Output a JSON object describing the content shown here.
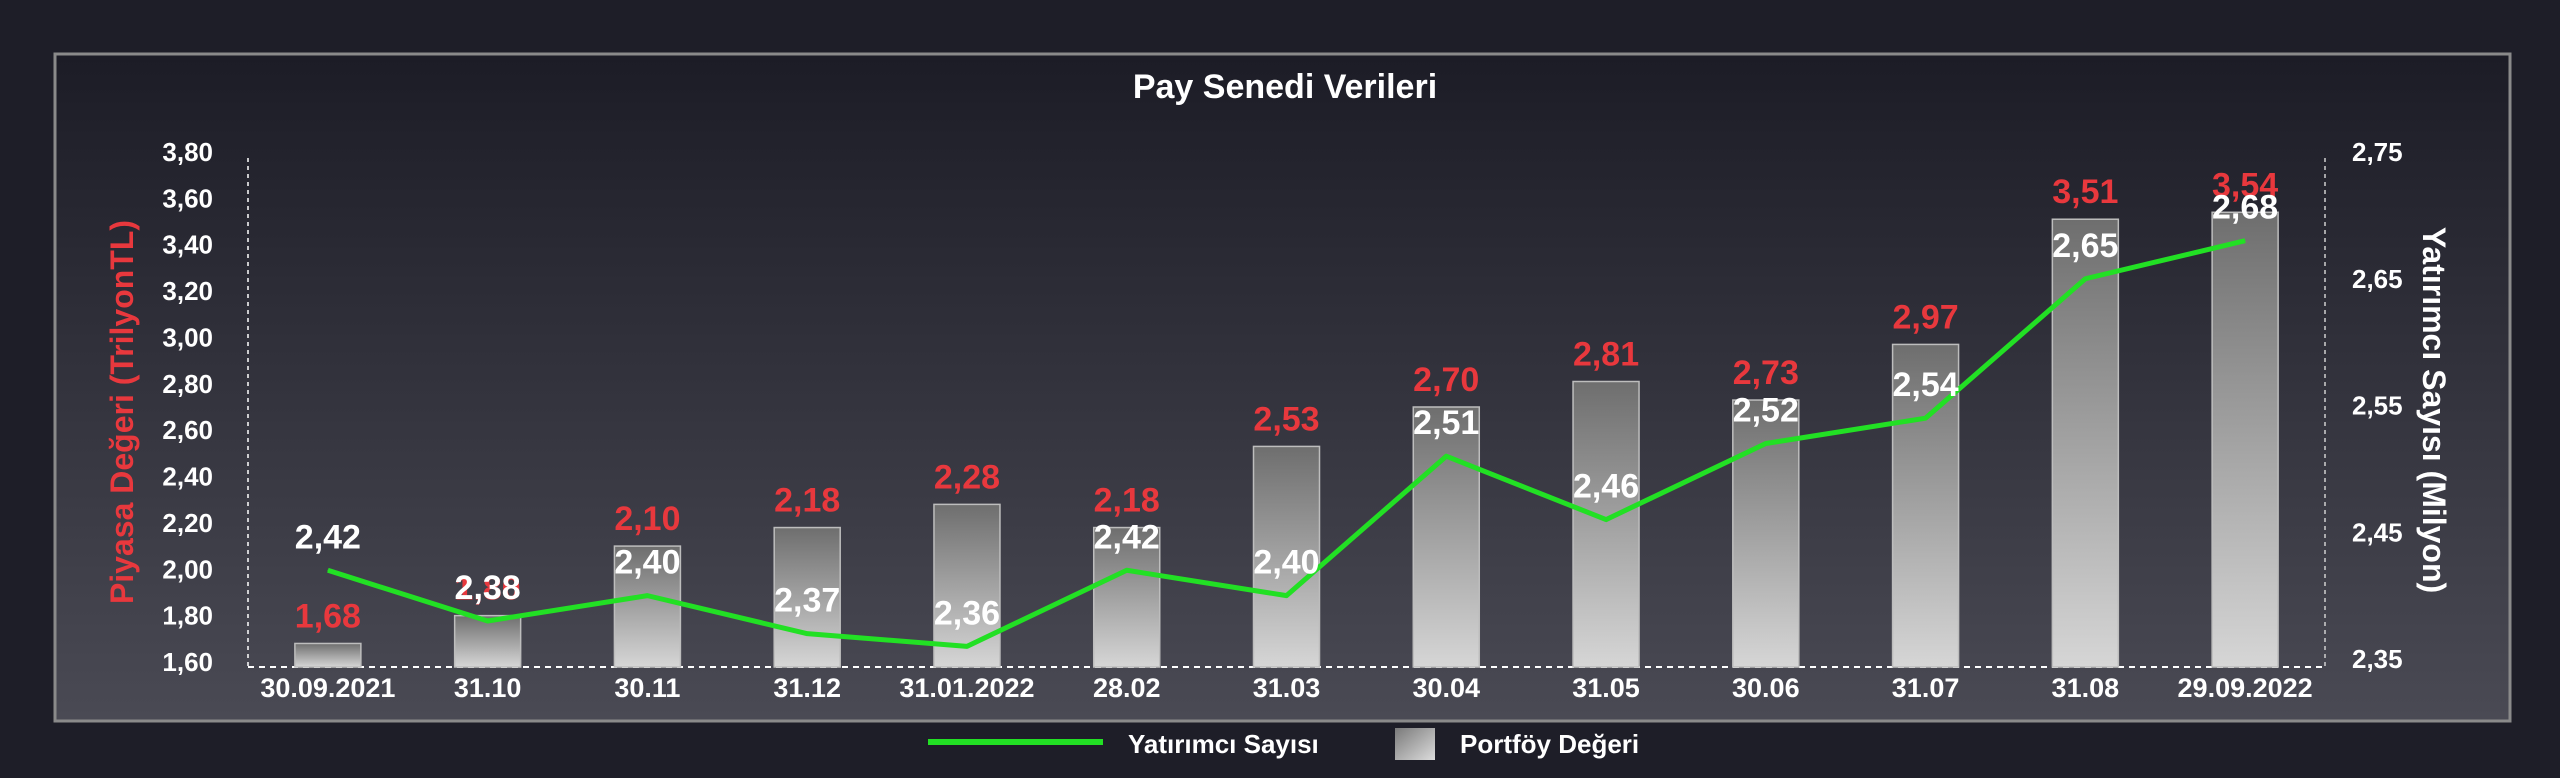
{
  "chart_data": {
    "type": "bar",
    "title": "Pay Senedi Verileri",
    "categories": [
      "30.09.2021",
      "31.10",
      "30.11",
      "31.12",
      "31.01.2022",
      "28.02",
      "31.03",
      "30.04",
      "31.05",
      "30.06",
      "31.07",
      "31.08",
      "29.09.2022"
    ],
    "series": [
      {
        "name": "Portföy Değeri",
        "type": "bar",
        "axis": "left",
        "values": [
          1.68,
          1.8,
          2.1,
          2.18,
          2.28,
          2.18,
          2.53,
          2.7,
          2.81,
          2.73,
          2.97,
          3.51,
          3.54
        ],
        "labels": [
          "1,68",
          "1,80",
          "2,10",
          "2,18",
          "2,28",
          "2,18",
          "2,53",
          "2,70",
          "2,81",
          "2,73",
          "2,97",
          "3,51",
          "3,54"
        ]
      },
      {
        "name": "Yatırımcı Sayısı",
        "type": "line",
        "axis": "right",
        "values": [
          2.42,
          2.38,
          2.4,
          2.37,
          2.36,
          2.42,
          2.4,
          2.51,
          2.46,
          2.52,
          2.54,
          2.65,
          2.68
        ],
        "labels": [
          "2,42",
          "2,38",
          "2,40",
          "2,37",
          "2,36",
          "2,42",
          "2,40",
          "2,51",
          "2,46",
          "2,52",
          "2,54",
          "2,65",
          "2,68"
        ]
      }
    ],
    "ylabel_left": "Piyasa Değeri (TrilyonTL)",
    "ylabel_right": "Yatırımcı Sayısı (Milyon)",
    "ylim_left": [
      1.6,
      3.8
    ],
    "ylim_right": [
      2.35,
      2.75
    ],
    "yticks_left": [
      "1,60",
      "1,80",
      "2,00",
      "2,20",
      "2,40",
      "2,60",
      "2,80",
      "3,00",
      "3,20",
      "3,40",
      "3,60",
      "3,80"
    ],
    "yticks_right": [
      "2,35",
      "2,45",
      "2,55",
      "2,65",
      "2,75"
    ],
    "legend": [
      {
        "name": "Yatırımcı Sayısı",
        "kind": "line"
      },
      {
        "name": "Portföy Değeri",
        "kind": "bar"
      }
    ],
    "legend_position": "bottom",
    "colors": {
      "bar_label": "#e8383d",
      "line": "#22e024",
      "line_label": "#ffffff",
      "ylabel_left": "#e8383d",
      "ylabel_right": "#ffffff",
      "title": "#ffffff"
    }
  }
}
